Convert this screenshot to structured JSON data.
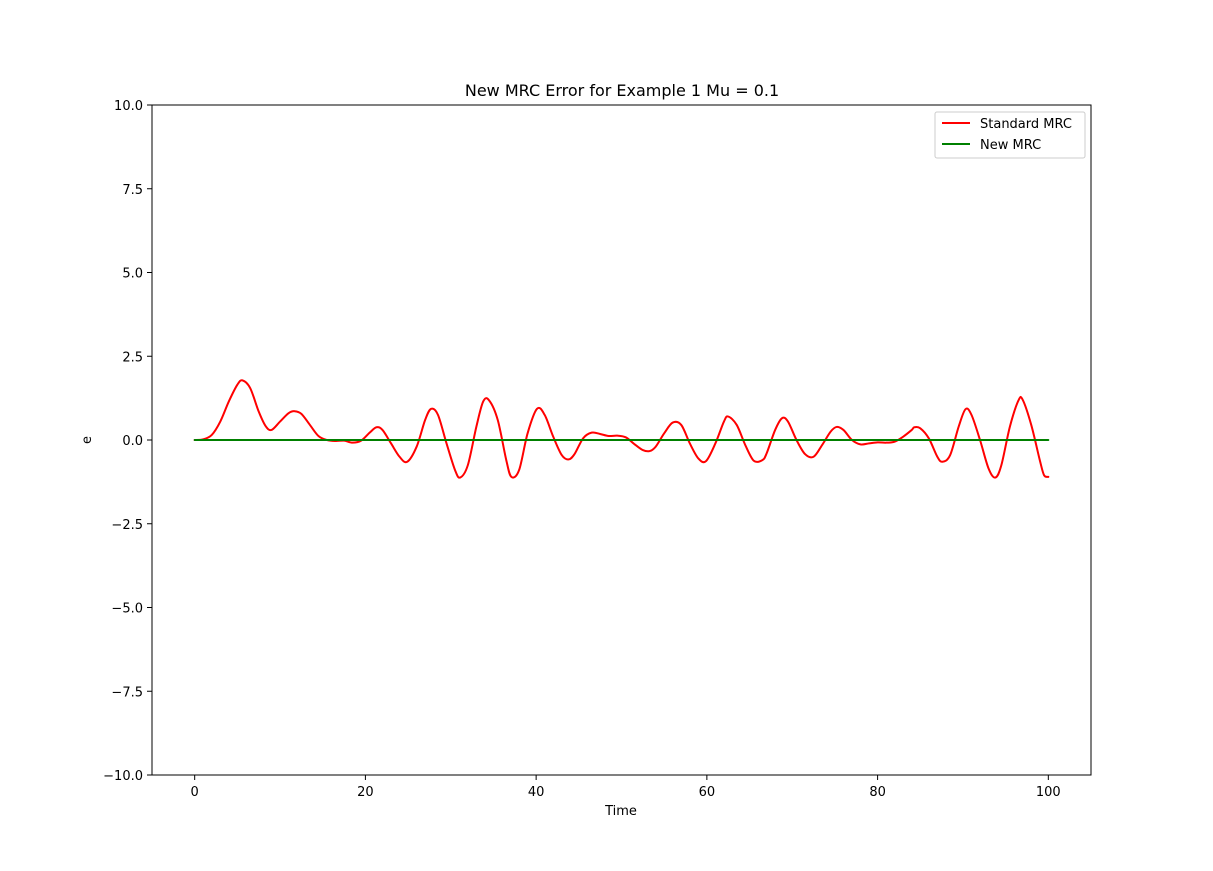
{
  "chart_data": {
    "type": "line",
    "title": "New MRC Error for Example 1 Mu = 0.1",
    "xlabel": "Time",
    "ylabel": "e",
    "xlim": [
      -5,
      105
    ],
    "ylim": [
      -10,
      10
    ],
    "xticks": [
      0,
      20,
      40,
      60,
      80,
      100
    ],
    "xtick_labels": [
      "0",
      "20",
      "40",
      "60",
      "80",
      "100"
    ],
    "yticks": [
      10,
      7.5,
      5,
      2.5,
      0,
      -2.5,
      -5,
      -7.5,
      -10
    ],
    "ytick_labels": [
      "10.0",
      "7.5",
      "5.0",
      "2.5",
      "0.0",
      "−2.5",
      "−5.0",
      "−7.5",
      "−10.0"
    ],
    "grid": false,
    "legend_position": "top-right",
    "series": [
      {
        "name": "Standard MRC",
        "color": "#ff0000",
        "x": [
          0,
          1,
          2,
          3,
          4,
          5,
          5.6,
          6.5,
          7.5,
          8.3,
          9,
          10,
          11,
          11.7,
          12.5,
          13.5,
          14.5,
          15.5,
          16.5,
          17.5,
          18.5,
          19.5,
          20.5,
          21.3,
          22,
          23,
          24,
          24.9,
          26,
          27,
          27.7,
          28.5,
          29.5,
          30.5,
          31.1,
          32,
          33,
          33.8,
          34.5,
          35.5,
          36.5,
          37.1,
          38,
          39,
          40.1,
          41,
          42,
          43,
          43.8,
          44.5,
          45.5,
          46.5,
          47.5,
          48.5,
          49.5,
          50.5,
          51.5,
          52.5,
          53.3,
          54,
          55,
          56,
          57,
          58,
          59,
          59.9,
          61,
          62,
          62.5,
          63.5,
          64.5,
          65.5,
          66.5,
          67,
          68,
          68.8,
          69.5,
          70.5,
          71.5,
          72.5,
          73.5,
          74.5,
          75.2,
          76,
          77,
          78,
          79,
          80,
          81,
          82,
          83,
          84,
          84.3,
          85,
          86,
          87,
          87.6,
          88.5,
          89.5,
          90.3,
          91,
          92,
          93,
          93.8,
          94.5,
          95.5,
          96.5,
          97,
          98,
          99,
          99.5,
          100
        ],
        "y": [
          0,
          0.02,
          0.15,
          0.55,
          1.15,
          1.65,
          1.78,
          1.55,
          0.85,
          0.42,
          0.3,
          0.55,
          0.8,
          0.86,
          0.78,
          0.45,
          0.12,
          0,
          -0.03,
          -0.02,
          -0.08,
          -0.02,
          0.22,
          0.38,
          0.3,
          -0.1,
          -0.5,
          -0.65,
          -0.2,
          0.6,
          0.93,
          0.75,
          -0.1,
          -0.9,
          -1.12,
          -0.75,
          0.4,
          1.15,
          1.18,
          0.6,
          -0.6,
          -1.1,
          -0.9,
          0.2,
          0.93,
          0.75,
          0.1,
          -0.45,
          -0.58,
          -0.42,
          0.05,
          0.22,
          0.18,
          0.12,
          0.13,
          0.08,
          -0.12,
          -0.3,
          -0.33,
          -0.2,
          0.2,
          0.52,
          0.45,
          -0.1,
          -0.55,
          -0.63,
          -0.1,
          0.55,
          0.7,
          0.45,
          -0.15,
          -0.62,
          -0.6,
          -0.4,
          0.3,
          0.65,
          0.55,
          0,
          -0.42,
          -0.5,
          -0.15,
          0.25,
          0.39,
          0.3,
          0.0,
          -0.13,
          -0.1,
          -0.07,
          -0.08,
          -0.05,
          0.1,
          0.3,
          0.38,
          0.35,
          0.05,
          -0.5,
          -0.65,
          -0.45,
          0.4,
          0.92,
          0.75,
          0.0,
          -0.85,
          -1.12,
          -0.75,
          0.4,
          1.18,
          1.2,
          0.45,
          -0.6,
          -1.05,
          -1.1
        ]
      },
      {
        "name": "New MRC",
        "color": "#008000",
        "x": [
          0,
          100
        ],
        "y": [
          0,
          0
        ]
      }
    ]
  }
}
